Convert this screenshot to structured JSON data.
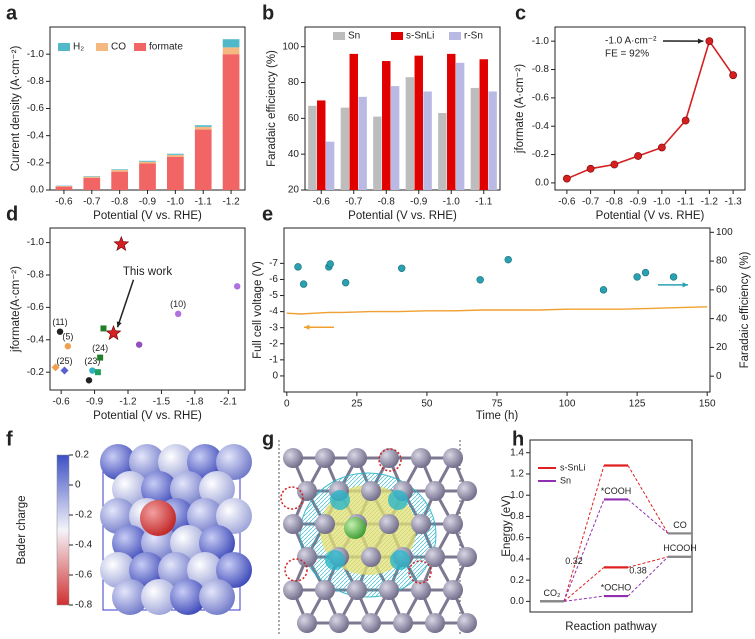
{
  "chart_data": [
    {
      "panel": "a",
      "type": "bar",
      "stacked": true,
      "xlabel": "Potential (V vs. RHE)",
      "ylabel": "Current density (A·cm⁻²)",
      "categories": [
        "-0.6",
        "-0.7",
        "-0.8",
        "-0.9",
        "-1.0",
        "-1.1",
        "-1.2"
      ],
      "series": [
        {
          "name": "H₂",
          "color": "#4fb9c9",
          "values": [
            -0.003,
            -0.004,
            -0.005,
            -0.007,
            -0.008,
            -0.012,
            -0.06
          ]
        },
        {
          "name": "CO",
          "color": "#f5b880",
          "values": [
            -0.004,
            -0.008,
            -0.012,
            -0.013,
            -0.014,
            -0.02,
            -0.05
          ]
        },
        {
          "name": "formate",
          "color": "#f26565",
          "values": [
            -0.025,
            -0.09,
            -0.135,
            -0.195,
            -0.245,
            -0.445,
            -1.0
          ]
        }
      ],
      "ylim": [
        0,
        -1.2
      ],
      "yticks": [
        {
          "value": 0,
          "label": "0.0"
        },
        -0.2,
        -0.4,
        -0.6,
        -0.8,
        {
          "value": -1,
          "label": "-1.0"
        }
      ]
    },
    {
      "panel": "b",
      "type": "bar",
      "stacked": false,
      "xlabel": "Potential (V vs. RHE)",
      "ylabel": "Faradaic efficiency (%)",
      "categories": [
        "-0.6",
        "-0.7",
        "-0.8",
        "-0.9",
        "-1.0",
        "-1.1"
      ],
      "series": [
        {
          "name": "Sn",
          "color": "#bdbdbd",
          "values": [
            67,
            66,
            61,
            83,
            63,
            77
          ]
        },
        {
          "name": "s-SnLi",
          "color": "#e00000",
          "values": [
            70,
            96,
            92,
            95,
            96,
            93
          ]
        },
        {
          "name": "r-Sn",
          "color": "#b9b9e3",
          "values": [
            47,
            72,
            78,
            75,
            91,
            75
          ]
        }
      ],
      "ylim": [
        20,
        111
      ],
      "yticks": [
        20,
        40,
        60,
        80,
        100
      ]
    },
    {
      "panel": "c",
      "type": "line",
      "xlabel": "Potential (V vs. RHE)",
      "ylabel": "jformate (A·cm⁻²)",
      "categories": [
        "-0.6",
        "-0.7",
        "-0.8",
        "-0.9",
        "-1.0",
        "-1.1",
        "-1.2",
        "-1.3"
      ],
      "series": [
        {
          "color": "#d42020",
          "values": [
            -0.03,
            -0.1,
            -0.13,
            -0.19,
            -0.25,
            -0.44,
            -1.0,
            -0.76
          ]
        }
      ],
      "annotations": [
        "-1.0 A·cm⁻²",
        "FE = 92%"
      ],
      "ylim": [
        0.05,
        -1.1
      ],
      "yticks": [
        {
          "value": 0,
          "label": "0.0"
        },
        -0.2,
        -0.4,
        -0.6,
        -0.8,
        {
          "value": -1,
          "label": "-1.0"
        }
      ]
    },
    {
      "panel": "d",
      "type": "scatter",
      "xlabel": "Potential (V vs. RHE)",
      "ylabel": "jformate(A·cm⁻²)",
      "x": [
        -1.14,
        -1.07,
        -0.59,
        -0.66,
        -0.63,
        -0.55,
        -0.88,
        -0.93,
        -0.85,
        -0.98,
        -0.95,
        -1.3,
        -1.65,
        -2.18
      ],
      "values": [
        -0.99,
        -0.44,
        -0.45,
        -0.36,
        -0.21,
        -0.23,
        -0.21,
        -0.2,
        -0.15,
        -0.47,
        -0.29,
        -0.37,
        -0.56,
        -0.73
      ],
      "colors": [
        "#d42020",
        "#d42020",
        "#222222",
        "#f0a050",
        "#5a60d0",
        "#f0a050",
        "#30b0c0",
        "#20a060",
        "#222222",
        "#20802a",
        "#20802a",
        "#9050c0",
        "#b070e0",
        "#b070e0"
      ],
      "markers": [
        "star",
        "star",
        "circle",
        "circle",
        "diamond",
        "diamond",
        "circle",
        "square",
        "circle",
        "square",
        "square",
        "circle",
        "circle",
        "circle"
      ],
      "point_labels": [
        null,
        null,
        "(11)",
        "(5)",
        "(25)",
        null,
        "(23)",
        null,
        null,
        null,
        "(24)",
        null,
        "(10)",
        null
      ],
      "annotations": [
        "This work"
      ],
      "xlim": [
        -0.5,
        -2.25
      ],
      "xticks": [
        -0.6,
        -0.9,
        -1.2,
        -1.5,
        -1.8,
        -2.1
      ],
      "ylim": [
        -0.09,
        -1.09
      ],
      "yticks": [
        -0.2,
        -0.4,
        -0.6,
        -0.8,
        {
          "value": -1,
          "label": "-1.0"
        }
      ]
    },
    {
      "panel": "e",
      "type": "line",
      "xlabel": "Time (h)",
      "ylabel": "Full cell voltage (V)",
      "y2label": "Faradaic efficiency (%)",
      "series": [
        {
          "color": "#f0a030",
          "x": [
            0,
            5,
            10,
            15,
            20,
            30,
            40,
            50,
            60,
            70,
            80,
            90,
            100,
            110,
            120,
            130,
            140,
            150
          ],
          "values": [
            -3.9,
            -3.85,
            -3.9,
            -3.95,
            -3.95,
            -4.0,
            -4.0,
            -4.05,
            -4.05,
            -4.1,
            -4.1,
            -4.1,
            -4.15,
            -4.15,
            -4.15,
            -4.2,
            -4.25,
            -4.3
          ]
        },
        {
          "color": "#2aa0b0",
          "axis": "y2",
          "marker_only": true,
          "x": [
            4,
            6,
            15,
            15.5,
            21,
            41,
            69,
            79,
            113,
            125,
            128,
            138
          ],
          "values": [
            76,
            64,
            76,
            78,
            65,
            75,
            67,
            81,
            60,
            69,
            72,
            69
          ]
        }
      ],
      "xlim": [
        -1,
        151
      ],
      "xticks": [
        0,
        25,
        50,
        75,
        100,
        125,
        150
      ],
      "ylim": [
        1,
        -9.2
      ],
      "yticks": [
        0,
        -1,
        -2,
        -3,
        -4,
        -5,
        -6,
        -7
      ],
      "y2lim": [
        -11,
        103
      ],
      "y2ticks": [
        0,
        20,
        40,
        60,
        80,
        100
      ]
    },
    {
      "panel": "f",
      "type": "colorbar",
      "ylabel": "Bader charge",
      "clim": [
        -0.8,
        0.2
      ],
      "ticks": [
        0.2,
        0,
        -0.2,
        -0.4,
        -0.6,
        -0.8
      ],
      "colors": [
        "#3c4fc4",
        "#f4f4fa",
        "#d03030"
      ]
    },
    {
      "panel": "g",
      "type": "image"
    },
    {
      "panel": "h",
      "type": "step",
      "xlabel": "Reaction pathway",
      "ylabel": "Energy (eV)",
      "series": [
        {
          "name": "s-SnLi",
          "color": "#e02020",
          "x": [
            0,
            1,
            2,
            null,
            0,
            1,
            2
          ],
          "values": [
            0,
            1.28,
            0.64,
            null,
            0,
            0.32,
            0.42
          ]
        },
        {
          "name": "Sn",
          "color": "#9030b0",
          "x": [
            0,
            1,
            2,
            null,
            0,
            1,
            2
          ],
          "values": [
            0,
            0.96,
            0.64,
            null,
            0,
            0.05,
            0.42
          ]
        }
      ],
      "level_labels": [
        "CO₂",
        "*COOH",
        "CO",
        "HCOOH",
        "*OCHO"
      ],
      "barriers": [
        0.32,
        0.38
      ],
      "ylim": [
        -0.1,
        1.52
      ],
      "yticks": [
        {
          "value": 0,
          "label": "0.0"
        },
        0.2,
        0.4,
        0.6,
        0.8,
        {
          "value": 1,
          "label": "1.0"
        },
        1.2,
        1.4
      ]
    }
  ]
}
